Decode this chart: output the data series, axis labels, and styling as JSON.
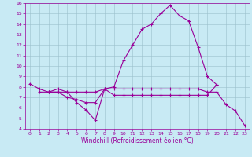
{
  "x": [
    0,
    1,
    2,
    3,
    4,
    5,
    6,
    7,
    8,
    9,
    10,
    11,
    12,
    13,
    14,
    15,
    16,
    17,
    18,
    19,
    20,
    21,
    22,
    23
  ],
  "line1": [
    8.3,
    7.8,
    7.5,
    7.8,
    7.5,
    6.5,
    5.8,
    4.8,
    7.8,
    8.0,
    10.5,
    12.0,
    13.5,
    14.0,
    15.0,
    15.8,
    14.8,
    14.3,
    11.8,
    9.0,
    8.2,
    null,
    null,
    null
  ],
  "line2": [
    null,
    7.5,
    7.5,
    7.5,
    7.5,
    7.5,
    7.5,
    7.5,
    7.8,
    7.8,
    7.8,
    7.8,
    7.8,
    7.8,
    7.8,
    7.8,
    7.8,
    7.8,
    7.8,
    7.5,
    7.5,
    6.3,
    5.7,
    4.3
  ],
  "line3": [
    null,
    null,
    7.5,
    7.5,
    7.0,
    6.8,
    6.5,
    6.5,
    7.8,
    7.2,
    7.2,
    7.2,
    7.2,
    7.2,
    7.2,
    7.2,
    7.2,
    7.2,
    7.2,
    7.2,
    8.2,
    null,
    null,
    null
  ],
  "ylim": [
    4,
    16
  ],
  "xlim": [
    -0.5,
    23.5
  ],
  "yticks": [
    4,
    5,
    6,
    7,
    8,
    9,
    10,
    11,
    12,
    13,
    14,
    15,
    16
  ],
  "xticks": [
    0,
    1,
    2,
    3,
    4,
    5,
    6,
    7,
    8,
    9,
    10,
    11,
    12,
    13,
    14,
    15,
    16,
    17,
    18,
    19,
    20,
    21,
    22,
    23
  ],
  "xlabel": "Windchill (Refroidissement éolien,°C)",
  "line_color": "#990099",
  "bg_color": "#c8eaf4",
  "grid_color": "#9bbfcc",
  "marker": "+",
  "markersize": 3,
  "linewidth": 0.8,
  "tick_fontsize": 4.5,
  "xlabel_fontsize": 5.5
}
